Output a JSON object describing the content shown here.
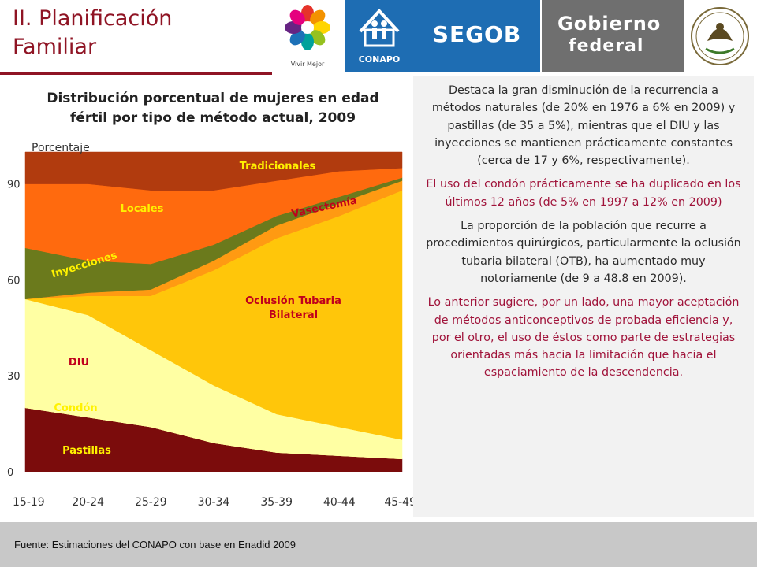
{
  "header": {
    "title_line1": "II. Planificación",
    "title_line2": "Familiar",
    "logos": {
      "vivir": "Vivir Mejor",
      "conapo": "CONAPO",
      "segob": "SEGOB",
      "gobierno_line1": "Gobierno",
      "gobierno_line2": "federal"
    }
  },
  "chart_data": {
    "type": "area",
    "title": "Distribución porcentual de mujeres en edad fértil por tipo de método actual, 2009",
    "ylabel": "Porcentaje",
    "xlabel": "",
    "ylim": [
      0,
      100
    ],
    "yticks": [
      "0",
      "30",
      "60",
      "90"
    ],
    "categories": [
      "15-19",
      "20-24",
      "25-29",
      "30-34",
      "35-39",
      "40-44",
      "45-49"
    ],
    "series": [
      {
        "name": "Pastillas",
        "color": "#7b0c0c",
        "values": [
          20,
          17,
          14,
          9,
          6,
          5,
          4
        ]
      },
      {
        "name": "Condón",
        "color": "#ffff8c",
        "values": [
          0,
          0,
          0,
          0,
          0,
          0,
          0
        ]
      },
      {
        "name": "DIU",
        "color": "#ffffa3",
        "values": [
          34,
          32,
          24,
          18,
          12,
          9,
          6
        ]
      },
      {
        "name": "Oclusión Tubaria Bilateral",
        "color": "#ffc60a",
        "values": [
          0,
          6,
          17,
          36,
          55,
          66,
          78
        ]
      },
      {
        "name": "Vasectomía",
        "color": "#ff9a12",
        "values": [
          0,
          1,
          2,
          3,
          4,
          4,
          3
        ]
      },
      {
        "name": "Inyecciones",
        "color": "#6b7a1c",
        "values": [
          16,
          10,
          8,
          5,
          3,
          2,
          1
        ]
      },
      {
        "name": "Locales",
        "color": "#ff6a0e",
        "values": [
          20,
          24,
          23,
          17,
          11,
          8,
          3
        ]
      },
      {
        "name": "Tradicionales",
        "color": "#b13b0e",
        "values": [
          10,
          10,
          12,
          12,
          9,
          6,
          5
        ]
      }
    ],
    "labels": [
      {
        "text": "Tradicionales",
        "color": "#fff200"
      },
      {
        "text": "Locales",
        "color": "#fff200"
      },
      {
        "text": "Vasectomía",
        "color": "#c0001c"
      },
      {
        "text": "Inyecciones",
        "color": "#fff200"
      },
      {
        "text": "Oclusión Tubaria",
        "color": "#c0001c"
      },
      {
        "text": "Bilateral",
        "color": "#c0001c"
      },
      {
        "text": "DIU",
        "color": "#c0001c"
      },
      {
        "text": "Condón",
        "color": "#fff200"
      },
      {
        "text": "Pastillas",
        "color": "#fff200"
      }
    ]
  },
  "text_panel": {
    "p1": "Destaca la gran disminución de la recurrencia a métodos naturales (de 20% en 1976 a 6% en 2009) y pastillas (de 35 a 5%), mientras que el DIU y las inyecciones se mantienen prácticamente constantes (cerca de 17 y 6%, respectivamente).",
    "p2": "El uso del condón prácticamente se ha duplicado en los últimos 12 años (de 5% en 1997 a 12% en 2009)",
    "p3": "La proporción de la población que recurre a procedimientos quirúrgicos, particularmente la oclusión tubaria bilateral (OTB), ha aumentado muy notoriamente (de 9 a 48.8 en 2009).",
    "p4": "Lo anterior sugiere, por un lado, una mayor aceptación de métodos anticonceptivos de probada eficiencia y, por el otro, el uso de éstos como parte de estrategias orientadas más hacia la limitación que hacia el espaciamiento de la descendencia."
  },
  "footer": {
    "source": "Fuente: Estimaciones del CONAPO con base en Enadid 2009"
  }
}
